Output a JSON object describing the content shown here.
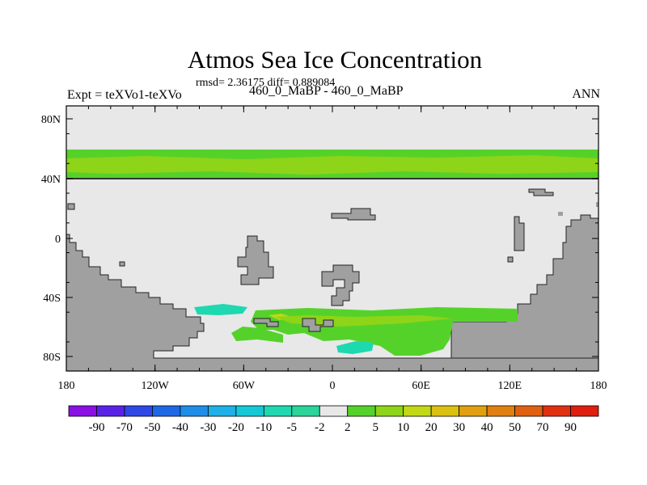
{
  "header": {
    "title": "Atmos Sea Ice Concentration",
    "stats": "rmsd= 2.36175 diff= 0.889084",
    "left_label": "Expt = teXVo1-teXVo",
    "center_label": "460_0_MaBP - 460_0_MaBP",
    "right_label": "ANN"
  },
  "map": {
    "lat_ticks": [
      "80N",
      "40N",
      "0",
      "40S",
      "80S"
    ],
    "lon_ticks": [
      "180",
      "120W",
      "60W",
      "0",
      "60E",
      "120E",
      "180"
    ]
  },
  "colorbar": {
    "labels": [
      "-90",
      "-70",
      "-50",
      "-40",
      "-30",
      "-20",
      "-10",
      "-5",
      "-2",
      "2",
      "5",
      "10",
      "20",
      "30",
      "40",
      "50",
      "70",
      "90"
    ],
    "colors": [
      "#8a10e6",
      "#5a22e8",
      "#2d48e6",
      "#1e68e6",
      "#1e8ee8",
      "#1eb0e8",
      "#14c8d8",
      "#1ed8b0",
      "#2ad49a",
      "#e8e8e8",
      "#55d22a",
      "#8ed418",
      "#c2d814",
      "#dcc010",
      "#e0a010",
      "#e08010",
      "#e06010",
      "#e03010",
      "#e01e10"
    ]
  },
  "colors": {
    "land": "#a0a0a0",
    "ocean_nochange": "#e8e8e8",
    "light_green": "#55d22a",
    "yellow_green": "#8ed418",
    "cyan": "#1ed8b0",
    "yellow": "#c2d814"
  }
}
